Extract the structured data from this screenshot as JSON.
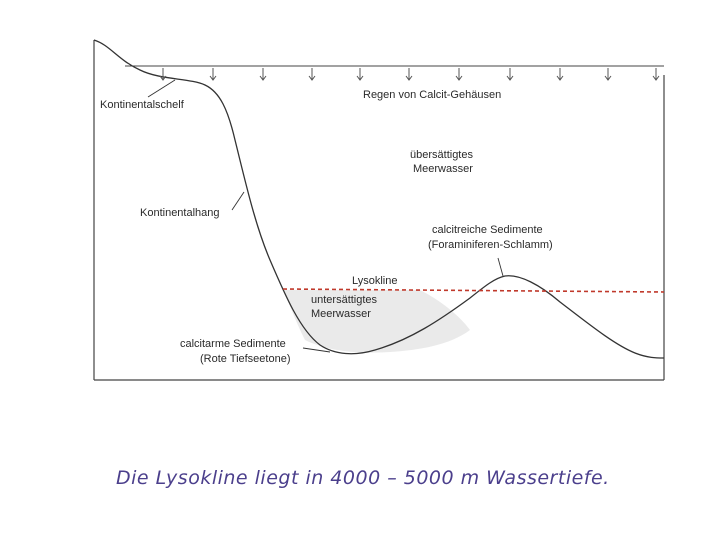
{
  "diagram": {
    "labels": {
      "continental_shelf": "Kontinentalschelf",
      "rain": "Regen von Calcit-Gehäusen",
      "supersaturated_line1": "übersättigtes",
      "supersaturated_line2": "Meerwasser",
      "continental_slope": "Kontinentalhang",
      "calcite_rich_line1": "calcitreiche Sedimente",
      "calcite_rich_line2": "(Foraminiferen-Schlamm)",
      "lysocline": "Lysokline",
      "undersaturated_line1": "untersättigtes",
      "undersaturated_line2": "Meerwasser",
      "calcite_poor_line1": "calcitarme Sedimente",
      "calcite_poor_line2": "(Rote Tiefseetone)"
    },
    "lysocline_color": "#c0392b",
    "caption_color": "#4b3f8c"
  },
  "caption": "Die Lysokline liegt in 4000 – 5000 m Wassertiefe."
}
